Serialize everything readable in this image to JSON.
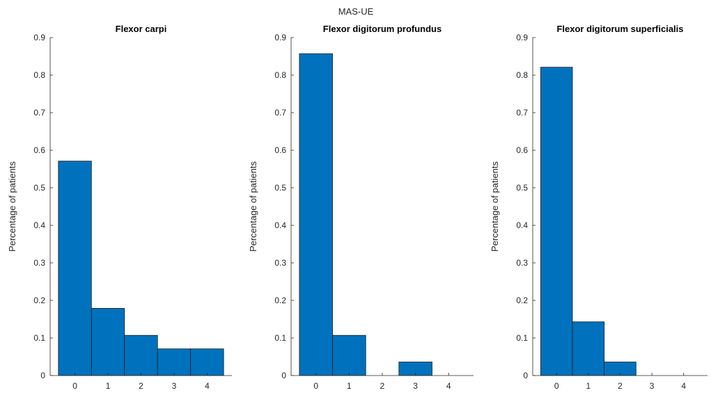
{
  "figure_title": "MAS-UE",
  "colors": {
    "bar_fill": "#0072BD",
    "bar_edge": "#1a1a1a",
    "axis": "#262626",
    "text": "#262626"
  },
  "chart_data": [
    {
      "type": "bar",
      "title": "Flexor carpi",
      "xlabel": "",
      "ylabel": "Percentage of patients",
      "categories": [
        "0",
        "1",
        "2",
        "3",
        "4"
      ],
      "values": [
        0.571,
        0.179,
        0.107,
        0.071,
        0.071
      ],
      "xlim": [
        -0.75,
        4.75
      ],
      "ylim": [
        0,
        0.9
      ],
      "yticks": [
        "0",
        "0.1",
        "0.2",
        "0.3",
        "0.4",
        "0.5",
        "0.6",
        "0.7",
        "0.8",
        "0.9"
      ],
      "grid": false
    },
    {
      "type": "bar",
      "title": "Flexor digitorum profundus",
      "xlabel": "",
      "ylabel": "Percentage of patients",
      "categories": [
        "0",
        "1",
        "2",
        "3",
        "4"
      ],
      "values": [
        0.857,
        0.107,
        0,
        0.036,
        0
      ],
      "xlim": [
        -0.75,
        4.75
      ],
      "ylim": [
        0,
        0.9
      ],
      "yticks": [
        "0",
        "0.1",
        "0.2",
        "0.3",
        "0.4",
        "0.5",
        "0.6",
        "0.7",
        "0.8",
        "0.9"
      ],
      "grid": false
    },
    {
      "type": "bar",
      "title": "Flexor digitorum superficialis",
      "xlabel": "",
      "ylabel": "Percentage of patients",
      "categories": [
        "0",
        "1",
        "2",
        "3",
        "4"
      ],
      "values": [
        0.821,
        0.143,
        0.036,
        0,
        0
      ],
      "xlim": [
        -0.75,
        4.75
      ],
      "ylim": [
        0,
        0.9
      ],
      "yticks": [
        "0",
        "0.1",
        "0.2",
        "0.3",
        "0.4",
        "0.5",
        "0.6",
        "0.7",
        "0.8",
        "0.9"
      ],
      "grid": false
    }
  ]
}
